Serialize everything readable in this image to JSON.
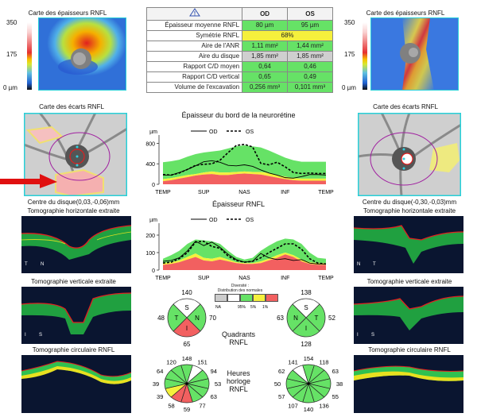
{
  "thickness_map": {
    "title": "Carte des épaisseurs RNFL",
    "scale": {
      "max": "350",
      "mid": "175",
      "min": "0 µm"
    }
  },
  "summary_table": {
    "warning_icon": "warning-triangle-icon",
    "columns": [
      "OD",
      "OS"
    ],
    "rows": [
      {
        "label": "Épaisseur moyenne RNFL",
        "od": "80 µm",
        "os": "95 µm",
        "od_status": "normal",
        "os_status": "normal"
      },
      {
        "label": "Symétrie RNFL",
        "merged": "68%",
        "status": "borderline"
      },
      {
        "label": "Aire de l'ANR",
        "od": "1,11 mm²",
        "os": "1,44 mm²",
        "od_status": "normal",
        "os_status": "normal"
      },
      {
        "label": "Aire du disque",
        "od": "1,85 mm²",
        "os": "1,85 mm²",
        "od_status": "na",
        "os_status": "na"
      },
      {
        "label": "Rapport C/D moyen",
        "od": "0,64",
        "os": "0,46",
        "od_status": "normal",
        "os_status": "normal"
      },
      {
        "label": "Rapport C/D vertical",
        "od": "0,65",
        "os": "0,49",
        "od_status": "normal",
        "os_status": "normal"
      },
      {
        "label": "Volume de l'excavation",
        "od": "0,256 mm³",
        "os": "0,101 mm³",
        "od_status": "normal",
        "os_status": "normal"
      }
    ]
  },
  "deviation_map": {
    "title": "Carte des écarts RNFL"
  },
  "left_eye": {
    "disc_center": "Centre du disque(0,03,-0,06)mm",
    "horizontal_title": "Tomographie horizontale extraite",
    "horizontal_orient": {
      "left": "T",
      "right": "N"
    },
    "vertical_title": "Tomographie verticale extraite",
    "vertical_orient": {
      "left": "I",
      "right": "S"
    },
    "circular_title": "Tomographie circulaire RNFL"
  },
  "right_eye": {
    "disc_center": "Centre du disque(-0,30,-0,03)mm",
    "horizontal_title": "Tomographie horizontale extraite",
    "horizontal_orient": {
      "left": "N",
      "right": "T"
    },
    "vertical_title": "Tomographie verticale extraite",
    "vertical_orient": {
      "left": "I",
      "right": "S"
    },
    "circular_title": "Tomographie circulaire RNFL"
  },
  "legend_norm": {
    "title_line1": "Diversité :",
    "title_line2": "Distribution des normales",
    "labels": [
      "NA",
      "95%",
      "5%",
      "1%"
    ],
    "colors": {
      "na": "#cccccc",
      "above": "#ffffff",
      "normal": "#66e266",
      "borderline": "#f5f03c",
      "outside": "#f26060"
    }
  },
  "quadrants": {
    "title_line1": "Quadrants",
    "title_line2": "RNFL",
    "od": {
      "S": {
        "value": "140",
        "status": "above"
      },
      "N": {
        "value": "70",
        "status": "normal"
      },
      "I": {
        "value": "65",
        "status": "outside"
      },
      "T": {
        "value": "48",
        "status": "normal"
      }
    },
    "os": {
      "S": {
        "value": "138",
        "status": "above"
      },
      "N": {
        "value": "63",
        "status": "normal"
      },
      "I": {
        "value": "128",
        "status": "normal"
      },
      "T": {
        "value": "52",
        "status": "normal"
      }
    }
  },
  "clock_hours": {
    "title_line1": "Heures",
    "title_line2": "horloge",
    "title_line3": "RNFL",
    "od": {
      "values": [
        "148",
        "151",
        "94",
        "53",
        "63",
        "77",
        "59",
        "58",
        "39",
        "39",
        "64",
        "120"
      ],
      "status": [
        "normal",
        "above",
        "normal",
        "normal",
        "normal",
        "normal",
        "outside",
        "outside",
        "borderline",
        "normal",
        "normal",
        "normal"
      ]
    },
    "os": {
      "values": [
        "154",
        "118",
        "63",
        "38",
        "55",
        "136",
        "140",
        "107",
        "57",
        "50",
        "62",
        "141"
      ],
      "status": [
        "normal",
        "normal",
        "normal",
        "normal",
        "normal",
        "normal",
        "normal",
        "normal",
        "normal",
        "normal",
        "normal",
        "above"
      ]
    }
  },
  "chart_data": [
    {
      "type": "line",
      "title": "Épaisseur du bord de la neurorétine",
      "ylabel": "µm",
      "ylim": [
        0,
        900
      ],
      "yticks": [
        "800",
        "400",
        "0"
      ],
      "xticks": [
        "TEMP",
        "SUP",
        "NAS",
        "INF",
        "TEMP"
      ],
      "legend": [
        {
          "name": "OD",
          "style": "solid"
        },
        {
          "name": "OS",
          "style": "dashed"
        }
      ],
      "x": [
        0,
        0.05,
        0.1,
        0.15,
        0.2,
        0.25,
        0.3,
        0.35,
        0.4,
        0.45,
        0.5,
        0.55,
        0.6,
        0.65,
        0.7,
        0.75,
        0.8,
        0.85,
        0.9,
        0.95,
        1
      ],
      "series": [
        {
          "name": "OD",
          "values": [
            180,
            180,
            230,
            290,
            360,
            440,
            460,
            430,
            370,
            360,
            380,
            350,
            280,
            220,
            180,
            130,
            120,
            150,
            190,
            190,
            180
          ]
        },
        {
          "name": "OS",
          "values": [
            190,
            180,
            220,
            290,
            370,
            390,
            400,
            470,
            620,
            760,
            780,
            730,
            410,
            380,
            430,
            340,
            230,
            210,
            220,
            210,
            210
          ]
        }
      ],
      "bands": {
        "p1": [
          60,
          80,
          110,
          140,
          170,
          190,
          200,
          180,
          180,
          200,
          210,
          200,
          190,
          160,
          130,
          100,
          80,
          70,
          70,
          70,
          70
        ],
        "p5": [
          100,
          120,
          150,
          180,
          200,
          230,
          250,
          230,
          230,
          240,
          250,
          240,
          240,
          220,
          180,
          150,
          120,
          110,
          110,
          110,
          110
        ],
        "p95": [
          430,
          450,
          480,
          540,
          590,
          620,
          640,
          660,
          700,
          740,
          760,
          740,
          720,
          660,
          590,
          520,
          470,
          440,
          440,
          440,
          440
        ]
      }
    },
    {
      "type": "line",
      "title": "Épaisseur RNFL",
      "ylabel": "µm",
      "ylim": [
        0,
        250
      ],
      "yticks": [
        "200",
        "100",
        "0"
      ],
      "xticks": [
        "TEMP",
        "SUP",
        "NAS",
        "INF",
        "TEMP"
      ],
      "legend": [
        {
          "name": "OD",
          "style": "solid"
        },
        {
          "name": "OS",
          "style": "dashed"
        }
      ],
      "x": [
        0,
        0.05,
        0.1,
        0.15,
        0.2,
        0.25,
        0.3,
        0.35,
        0.4,
        0.45,
        0.5,
        0.55,
        0.6,
        0.65,
        0.7,
        0.75,
        0.8,
        0.85,
        0.9,
        0.95,
        1
      ],
      "series": [
        {
          "name": "OD",
          "values": [
            50,
            55,
            70,
            110,
            165,
            140,
            160,
            130,
            90,
            60,
            45,
            50,
            95,
            70,
            60,
            65,
            55,
            60,
            40,
            35,
            35
          ]
        },
        {
          "name": "OS",
          "values": [
            40,
            45,
            65,
            100,
            160,
            165,
            135,
            125,
            80,
            55,
            45,
            50,
            70,
            100,
            125,
            150,
            150,
            120,
            65,
            40,
            35
          ]
        }
      ],
      "bands": {
        "p1": [
          30,
          35,
          45,
          60,
          75,
          55,
          50,
          60,
          50,
          40,
          35,
          35,
          40,
          55,
          70,
          90,
          75,
          50,
          35,
          30,
          30
        ],
        "p5": [
          40,
          45,
          55,
          75,
          95,
          70,
          65,
          75,
          60,
          45,
          40,
          40,
          50,
          65,
          85,
          100,
          85,
          60,
          45,
          40,
          40
        ],
        "p95": [
          65,
          85,
          110,
          150,
          175,
          170,
          165,
          150,
          110,
          75,
          60,
          70,
          110,
          140,
          165,
          180,
          175,
          150,
          100,
          70,
          65
        ]
      }
    }
  ]
}
